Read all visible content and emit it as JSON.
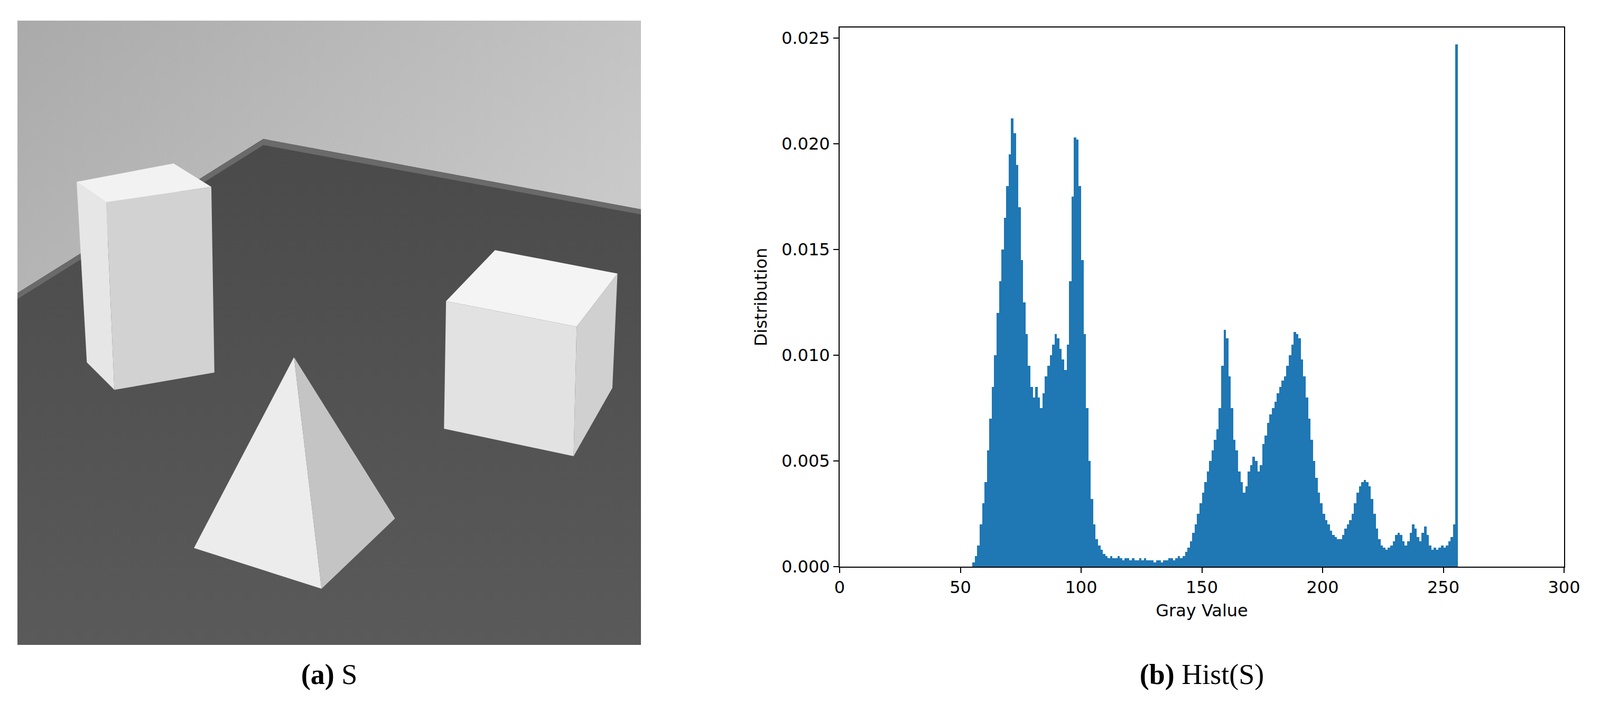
{
  "image_panel": {
    "caption": "(a) S"
  },
  "chart_data": {
    "type": "histogram",
    "title": "(b) Hist(S)",
    "x_label": "Gray Value",
    "y_label": "Distribution",
    "color": "#1f77b4",
    "grid": false,
    "xlim": [
      0,
      300
    ],
    "xticks": [
      0,
      50,
      100,
      150,
      200,
      250,
      300
    ],
    "ylim": [
      0,
      0.0255
    ],
    "yticks": [
      {
        "value": 0,
        "label": "0.000"
      },
      {
        "value": 0.005,
        "label": "0.005"
      },
      {
        "value": 0.01,
        "label": "0.010"
      },
      {
        "value": 0.015,
        "label": "0.015"
      },
      {
        "value": 0.02,
        "label": "0.020"
      },
      {
        "value": 0.025,
        "label": "0.025"
      }
    ],
    "bins": [
      55,
      56,
      57,
      58,
      59,
      60,
      61,
      62,
      63,
      64,
      65,
      66,
      67,
      68,
      69,
      70,
      71,
      72,
      73,
      74,
      75,
      76,
      77,
      78,
      79,
      80,
      81,
      82,
      83,
      84,
      85,
      86,
      87,
      88,
      89,
      90,
      91,
      92,
      93,
      94,
      95,
      96,
      97,
      98,
      99,
      100,
      101,
      102,
      103,
      104,
      105,
      106,
      107,
      108,
      109,
      110,
      111,
      112,
      113,
      114,
      115,
      116,
      117,
      118,
      119,
      120,
      121,
      122,
      123,
      124,
      125,
      126,
      127,
      128,
      129,
      130,
      131,
      132,
      133,
      134,
      135,
      136,
      137,
      138,
      139,
      140,
      141,
      142,
      143,
      144,
      145,
      146,
      147,
      148,
      149,
      150,
      151,
      152,
      153,
      154,
      155,
      156,
      157,
      158,
      159,
      160,
      161,
      162,
      163,
      164,
      165,
      166,
      167,
      168,
      169,
      170,
      171,
      172,
      173,
      174,
      175,
      176,
      177,
      178,
      179,
      180,
      181,
      182,
      183,
      184,
      185,
      186,
      187,
      188,
      189,
      190,
      191,
      192,
      193,
      194,
      195,
      196,
      197,
      198,
      199,
      200,
      201,
      202,
      203,
      204,
      205,
      206,
      207,
      208,
      209,
      210,
      211,
      212,
      213,
      214,
      215,
      216,
      217,
      218,
      219,
      220,
      221,
      222,
      223,
      224,
      225,
      226,
      227,
      228,
      229,
      230,
      231,
      232,
      233,
      234,
      235,
      236,
      237,
      238,
      239,
      240,
      241,
      242,
      243,
      244,
      245,
      246,
      247,
      248,
      249,
      250,
      251,
      252,
      253,
      254,
      255,
      256
    ],
    "values": [
      0.0002,
      0.0005,
      0.001,
      0.002,
      0.003,
      0.004,
      0.0055,
      0.007,
      0.0085,
      0.01,
      0.012,
      0.0135,
      0.015,
      0.0165,
      0.018,
      0.0195,
      0.0212,
      0.0205,
      0.019,
      0.017,
      0.0145,
      0.0125,
      0.011,
      0.0095,
      0.0085,
      0.008,
      0.0085,
      0.008,
      0.0075,
      0.0082,
      0.009,
      0.0095,
      0.01,
      0.0105,
      0.011,
      0.0108,
      0.0103,
      0.0098,
      0.0093,
      0.0105,
      0.0135,
      0.0175,
      0.0203,
      0.0202,
      0.018,
      0.0145,
      0.011,
      0.0075,
      0.005,
      0.0032,
      0.002,
      0.0013,
      0.001,
      0.0008,
      0.0006,
      0.0005,
      0.0004,
      0.0005,
      0.0004,
      0.0004,
      0.0005,
      0.0004,
      0.0003,
      0.0004,
      0.0004,
      0.0003,
      0.0004,
      0.0003,
      0.0003,
      0.0004,
      0.0003,
      0.0004,
      0.0003,
      0.0003,
      0.0003,
      0.0002,
      0.0003,
      0.0003,
      0.0002,
      0.0003,
      0.0003,
      0.0004,
      0.0004,
      0.0003,
      0.0004,
      0.0005,
      0.0004,
      0.0005,
      0.0007,
      0.0009,
      0.0012,
      0.0016,
      0.002,
      0.0025,
      0.003,
      0.0035,
      0.004,
      0.0045,
      0.005,
      0.0055,
      0.006,
      0.0065,
      0.0075,
      0.0095,
      0.0112,
      0.0108,
      0.009,
      0.0075,
      0.006,
      0.0055,
      0.0045,
      0.004,
      0.0035,
      0.0038,
      0.0045,
      0.0048,
      0.0052,
      0.005,
      0.0045,
      0.0048,
      0.0058,
      0.0062,
      0.0068,
      0.0072,
      0.0075,
      0.0078,
      0.0082,
      0.0085,
      0.0088,
      0.009,
      0.0095,
      0.01,
      0.0105,
      0.0111,
      0.011,
      0.0108,
      0.0098,
      0.009,
      0.008,
      0.007,
      0.006,
      0.005,
      0.0042,
      0.0035,
      0.003,
      0.0025,
      0.0022,
      0.002,
      0.0017,
      0.0015,
      0.0014,
      0.0013,
      0.0013,
      0.0015,
      0.0018,
      0.002,
      0.0022,
      0.0025,
      0.003,
      0.0035,
      0.0038,
      0.004,
      0.0041,
      0.004,
      0.0038,
      0.0032,
      0.0025,
      0.0018,
      0.0013,
      0.001,
      0.0009,
      0.0008,
      0.0009,
      0.001,
      0.0012,
      0.0015,
      0.0016,
      0.0015,
      0.0012,
      0.001,
      0.0012,
      0.0016,
      0.002,
      0.0018,
      0.0014,
      0.0012,
      0.0016,
      0.0019,
      0.0015,
      0.001,
      0.0008,
      0.0009,
      0.0008,
      0.0009,
      0.001,
      0.0009,
      0.001,
      0.0012,
      0.0014,
      0.002,
      0.0247
    ]
  }
}
